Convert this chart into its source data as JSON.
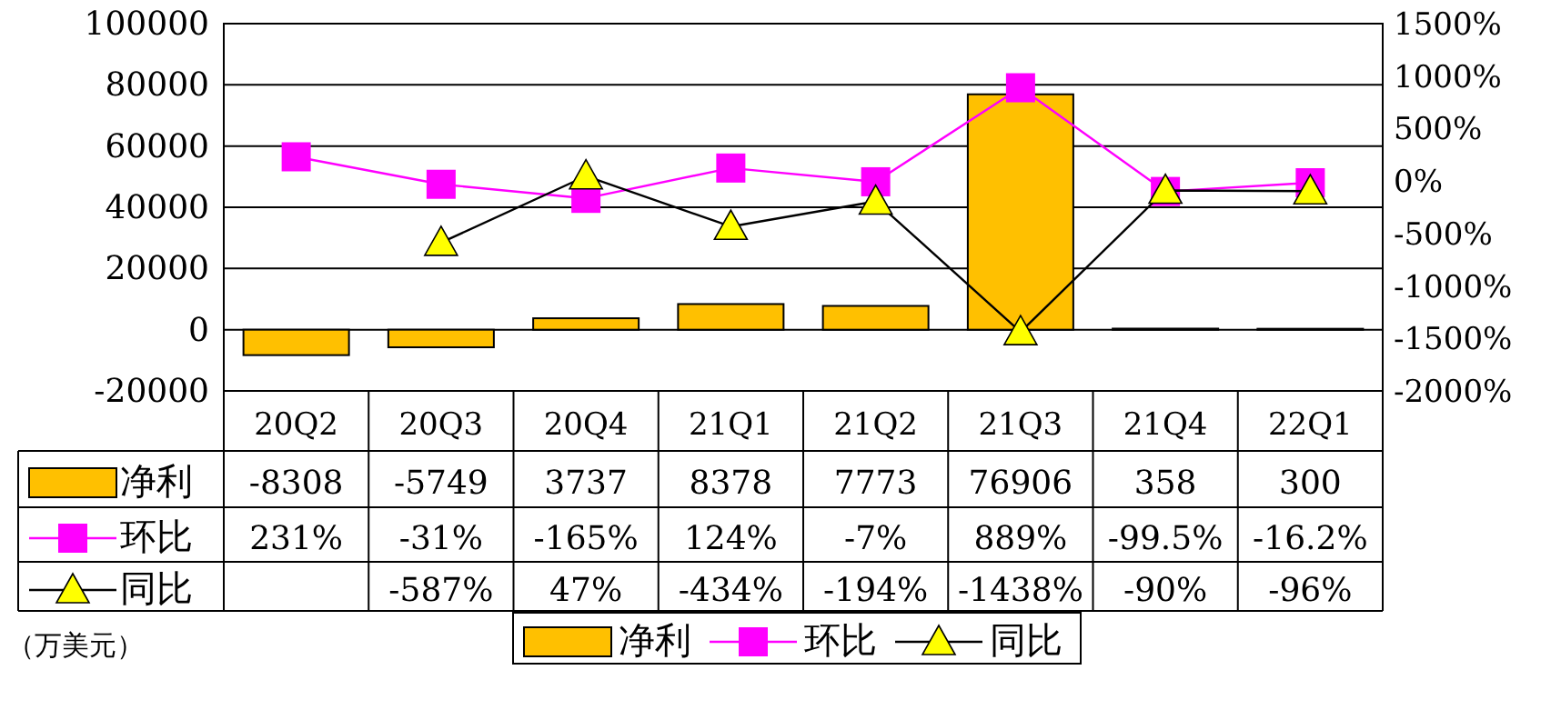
{
  "chart_data": {
    "type": "bar",
    "categories": [
      "20Q2",
      "20Q3",
      "20Q4",
      "21Q1",
      "21Q2",
      "21Q3",
      "21Q4",
      "22Q1"
    ],
    "series": [
      {
        "name": "净利",
        "color": "#ffc000",
        "values": [
          -8308,
          -5749,
          3737,
          8378,
          7773,
          76906,
          358,
          300
        ],
        "value_labels": [
          "-8308",
          "-5749",
          "3737",
          "8378",
          "7773",
          "76906",
          "358",
          "300"
        ]
      },
      {
        "name": "环比",
        "type": "line",
        "axis": "y2",
        "color": "#ff00ff",
        "marker": "square",
        "values": [
          231,
          -31,
          -165,
          124,
          -7,
          889,
          -99.5,
          -16.2
        ],
        "value_labels": [
          "231%",
          "-31%",
          "-165%",
          "124%",
          "-7%",
          "889%",
          "-99.5%",
          "-16.2%"
        ]
      },
      {
        "name": "同比",
        "type": "line",
        "axis": "y2",
        "color": "#000000",
        "marker": "triangle",
        "values": [
          null,
          -587,
          47,
          -434,
          -194,
          -1438,
          -90,
          -96
        ],
        "value_labels": [
          null,
          "-587%",
          "47%",
          "-434%",
          "-194%",
          "-1438%",
          "-90%",
          "-96%"
        ]
      }
    ],
    "ylim": [
      -20000,
      100000
    ],
    "yticks": [
      -20000,
      0,
      20000,
      40000,
      60000,
      80000,
      100000
    ],
    "y2lim": [
      -2000,
      1500
    ],
    "y2ticks": [
      {
        "value": -2000,
        "label": "-2000%"
      },
      {
        "value": -1500,
        "label": "-1500%"
      },
      {
        "value": -1000,
        "label": "-1000%"
      },
      {
        "value": -500,
        "label": "-500%"
      },
      {
        "value": 0,
        "label": "0%"
      },
      {
        "value": 500,
        "label": "500%"
      },
      {
        "value": 1000,
        "label": "1000%"
      },
      {
        "value": 1500,
        "label": "1500%"
      }
    ],
    "grid": "y",
    "legend": "bottom",
    "annotations": [
      "（万美元）"
    ]
  }
}
